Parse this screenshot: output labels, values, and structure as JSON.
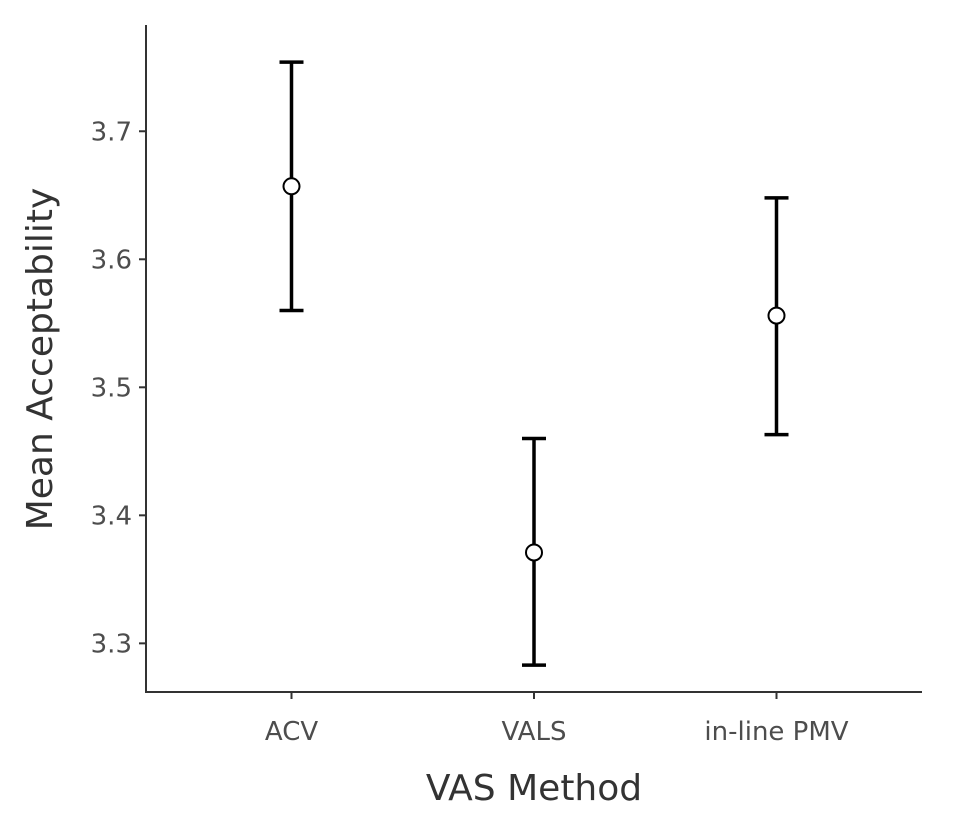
{
  "chart_data": {
    "type": "scatter",
    "title": "",
    "xlabel": "VAS Method",
    "ylabel": "Mean Acceptability",
    "categories": [
      "ACV",
      "VALS",
      "in-line PMV"
    ],
    "series": [
      {
        "values": [
          3.657,
          3.371,
          3.556
        ],
        "error_low": [
          3.56,
          3.283,
          3.463
        ],
        "error_high": [
          3.754,
          3.46,
          3.648
        ]
      }
    ],
    "yticks": [
      "3.3",
      "3.4",
      "3.5",
      "3.6",
      "3.7"
    ],
    "ylim": [
      3.262,
      3.783
    ],
    "grid": false,
    "legend": "none",
    "colors": {
      "point_fill": "#ffffff",
      "point_stroke": "#000000",
      "error_bar": "#000000",
      "axis": "#333333"
    }
  }
}
